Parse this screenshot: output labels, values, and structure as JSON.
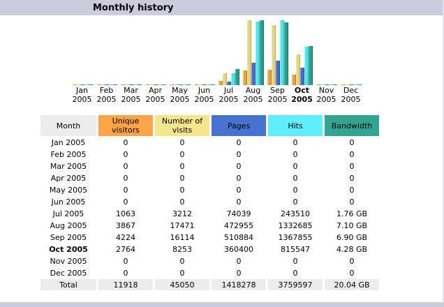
{
  "page": {
    "title": "Monthly history",
    "accent_color": "#CCCCDD",
    "background_color": "#FFFFFF"
  },
  "chart_data": {
    "type": "bar",
    "title": "Monthly history",
    "categories": [
      "Jan 2005",
      "Feb 2005",
      "Mar 2005",
      "Apr 2005",
      "May 2005",
      "Jun 2005",
      "Jul 2005",
      "Aug 2005",
      "Sep 2005",
      "Oct 2005",
      "Nov 2005",
      "Dec 2005"
    ],
    "current_month_index": 9,
    "legend_position": "table-header-below",
    "grid": false,
    "series": [
      {
        "key": "unique-visitors",
        "name": "Unique visitors",
        "scale_group": "visits",
        "color": "#E9A145",
        "light": "#F6C983",
        "dark": "#C07820",
        "values": [
          0,
          0,
          0,
          0,
          0,
          0,
          1063,
          3867,
          4224,
          2764,
          0,
          0
        ]
      },
      {
        "key": "number-of-visits",
        "name": "Number of visits",
        "scale_group": "visits",
        "color": "#E2D586",
        "light": "#F0E9B4",
        "dark": "#BCAC58",
        "values": [
          0,
          0,
          0,
          0,
          0,
          0,
          3212,
          17471,
          16114,
          8253,
          0,
          0
        ]
      },
      {
        "key": "pages",
        "name": "Pages",
        "scale_group": "hits",
        "color": "#4A6BD2",
        "light": "#8CA3E8",
        "dark": "#33479E",
        "values": [
          0,
          0,
          0,
          0,
          0,
          0,
          74039,
          472955,
          510884,
          360400,
          0,
          0
        ]
      },
      {
        "key": "hits",
        "name": "Hits",
        "scale_group": "hits",
        "color": "#4FE4E8",
        "light": "#A8F3F3",
        "dark": "#2CB8C0",
        "values": [
          0,
          0,
          0,
          0,
          0,
          0,
          243510,
          1332685,
          1367855,
          815547,
          0,
          0
        ]
      },
      {
        "key": "bandwidth",
        "name": "Bandwidth",
        "unit": "GB",
        "scale_group": "bandwidth",
        "color": "#2E9A88",
        "light": "#58BDAE",
        "dark": "#1C6E60",
        "values": [
          0,
          0,
          0,
          0,
          0,
          0,
          1.76,
          7.1,
          6.9,
          4.28,
          0,
          0
        ]
      }
    ]
  },
  "table": {
    "headers": [
      {
        "label": "Month",
        "bg": "#ECECEC"
      },
      {
        "label": "Unique visitors",
        "bg": "#FCA447"
      },
      {
        "label": "Number of visits",
        "bg": "#F3E68C"
      },
      {
        "label": "Pages",
        "bg": "#4673D2"
      },
      {
        "label": "Hits",
        "bg": "#5FEEFC"
      },
      {
        "label": "Bandwidth",
        "bg": "#33A392"
      }
    ],
    "rows": [
      {
        "month": "Jan 2005",
        "bold": false,
        "cells": [
          "0",
          "0",
          "0",
          "0",
          "0"
        ]
      },
      {
        "month": "Feb 2005",
        "bold": false,
        "cells": [
          "0",
          "0",
          "0",
          "0",
          "0"
        ]
      },
      {
        "month": "Mar 2005",
        "bold": false,
        "cells": [
          "0",
          "0",
          "0",
          "0",
          "0"
        ]
      },
      {
        "month": "Apr 2005",
        "bold": false,
        "cells": [
          "0",
          "0",
          "0",
          "0",
          "0"
        ]
      },
      {
        "month": "May 2005",
        "bold": false,
        "cells": [
          "0",
          "0",
          "0",
          "0",
          "0"
        ]
      },
      {
        "month": "Jun 2005",
        "bold": false,
        "cells": [
          "0",
          "0",
          "0",
          "0",
          "0"
        ]
      },
      {
        "month": "Jul 2005",
        "bold": false,
        "cells": [
          "1063",
          "3212",
          "74039",
          "243510",
          "1.76 GB"
        ]
      },
      {
        "month": "Aug 2005",
        "bold": false,
        "cells": [
          "3867",
          "17471",
          "472955",
          "1332685",
          "7.10 GB"
        ]
      },
      {
        "month": "Sep 2005",
        "bold": false,
        "cells": [
          "4224",
          "16114",
          "510884",
          "1367855",
          "6.90 GB"
        ]
      },
      {
        "month": "Oct 2005",
        "bold": true,
        "cells": [
          "2764",
          "8253",
          "360400",
          "815547",
          "4.28 GB"
        ]
      },
      {
        "month": "Nov 2005",
        "bold": false,
        "cells": [
          "0",
          "0",
          "0",
          "0",
          "0"
        ]
      },
      {
        "month": "Dec 2005",
        "bold": false,
        "cells": [
          "0",
          "0",
          "0",
          "0",
          "0"
        ]
      }
    ],
    "total": {
      "label": "Total",
      "bg": "#ECECEC",
      "cells": [
        "11918",
        "45050",
        "1418278",
        "3759597",
        "20.04 GB"
      ]
    }
  }
}
